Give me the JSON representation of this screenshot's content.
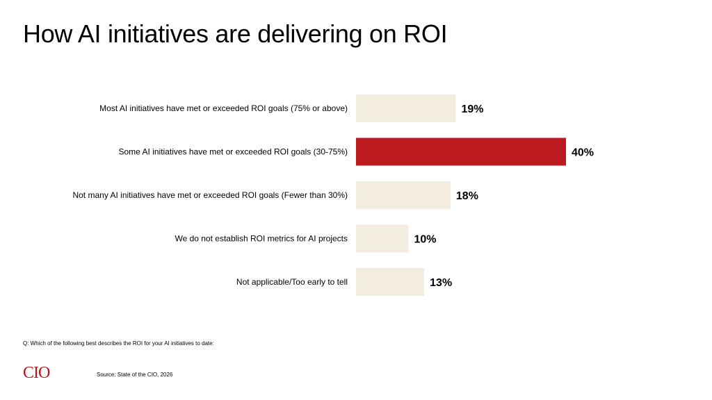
{
  "slide": {
    "title": "How AI initiatives are delivering on ROI",
    "question": "Q: Which of the following best describes the ROI for your AI initiatives to date:",
    "source": "Source: State of the CIO, 2026",
    "logo_text": "CIO"
  },
  "colors": {
    "highlight": "#bd1a1f",
    "bar": "#f3ede0",
    "brand": "#b3191f"
  },
  "chart_data": {
    "type": "bar",
    "orientation": "horizontal",
    "title": "How AI initiatives are delivering on ROI",
    "categories": [
      "Most AI initiatives have met or exceeded ROI goals (75% or above)",
      "Some AI initiatives have met or exceeded ROI goals (30-75%)",
      "Not many AI initiatives have met or exceeded ROI goals (Fewer than 30%)",
      "We do not establish ROI metrics for AI projects",
      "Not applicable/Too early to tell"
    ],
    "values": [
      19,
      40,
      18,
      10,
      13
    ],
    "value_labels": [
      "19%",
      "40%",
      "18%",
      "10%",
      "13%"
    ],
    "highlight_index": 1,
    "xlim": [
      0,
      40
    ],
    "grid": false,
    "legend": "none"
  }
}
